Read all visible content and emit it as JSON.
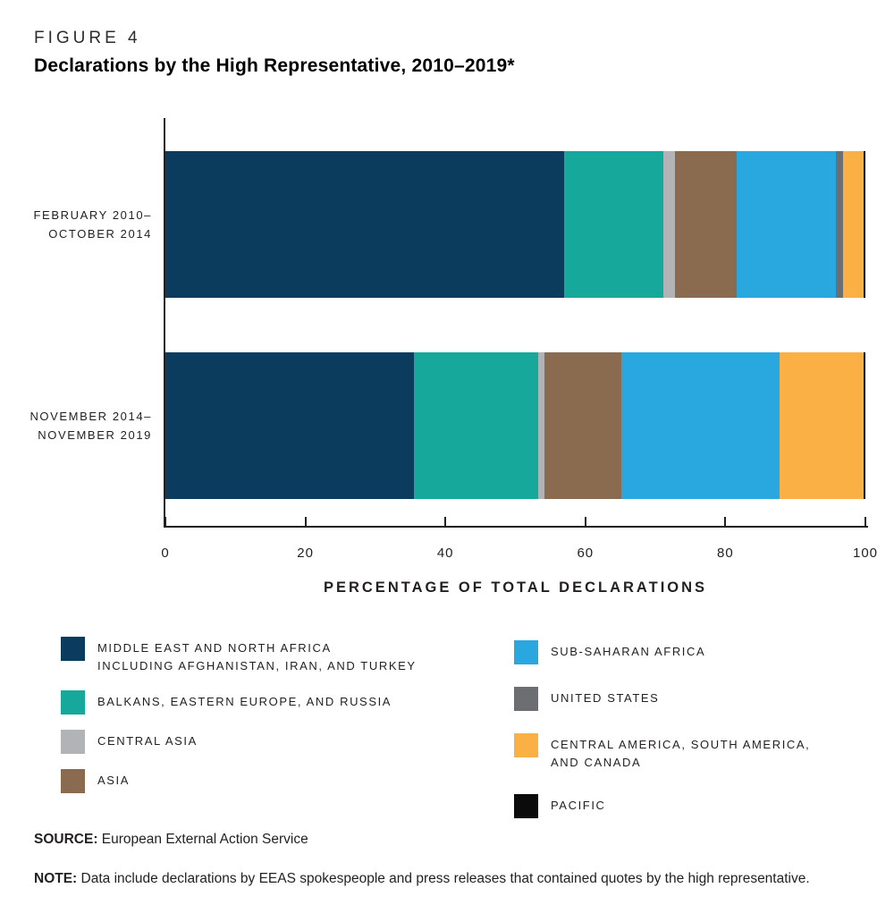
{
  "figure": {
    "eyebrow": "FIGURE 4",
    "title": "Declarations by the High Representative, 2010–2019*"
  },
  "chart_data": {
    "type": "bar",
    "orientation": "horizontal",
    "stacked": true,
    "unit": "percent",
    "title": "Declarations by the High Representative, 2010–2019*",
    "xlabel": "PERCENTAGE OF TOTAL DECLARATIONS",
    "xlim": [
      0,
      100
    ],
    "xticks": [
      0,
      20,
      40,
      60,
      80,
      100
    ],
    "grid": false,
    "legend_position": "bottom",
    "categories": [
      "FEBRUARY 2010–\nOCTOBER 2014",
      "NOVEMBER 2014–\nNOVEMBER 2019"
    ],
    "series": [
      {
        "name": "MIDDLE EAST AND NORTH AFRICA\nINCLUDING AFGHANISTAN, IRAN, AND TURKEY",
        "color": "#0b3c5e",
        "values": [
          57.0,
          35.5
        ]
      },
      {
        "name": "BALKANS, EASTERN EUROPE, AND RUSSIA",
        "color": "#17a89c",
        "values": [
          14.2,
          17.7
        ]
      },
      {
        "name": "CENTRAL ASIA",
        "color": "#b1b3b5",
        "values": [
          1.6,
          1.0
        ]
      },
      {
        "name": "ASIA",
        "color": "#8a6b50",
        "values": [
          8.8,
          11.0
        ]
      },
      {
        "name": "SUB-SAHARAN AFRICA",
        "color": "#29a8e0",
        "values": [
          14.2,
          22.6
        ]
      },
      {
        "name": "UNITED STATES",
        "color": "#6d6e71",
        "values": [
          1.0,
          0.0
        ]
      },
      {
        "name": "CENTRAL AMERICA, SOUTH AMERICA,\nAND CANADA",
        "color": "#fbb046",
        "values": [
          2.9,
          11.9
        ]
      },
      {
        "name": "PACIFIC",
        "color": "#0b0b0b",
        "values": [
          0.3,
          0.3
        ]
      }
    ],
    "legend_columns": [
      [
        0,
        1,
        2,
        3
      ],
      [
        4,
        5,
        6,
        7
      ]
    ]
  },
  "source": {
    "label": "SOURCE:",
    "text": "European External Action Service"
  },
  "note": {
    "label": "NOTE:",
    "text": "Data include declarations by EEAS spokespeople and press releases that contained quotes by the high representative."
  }
}
